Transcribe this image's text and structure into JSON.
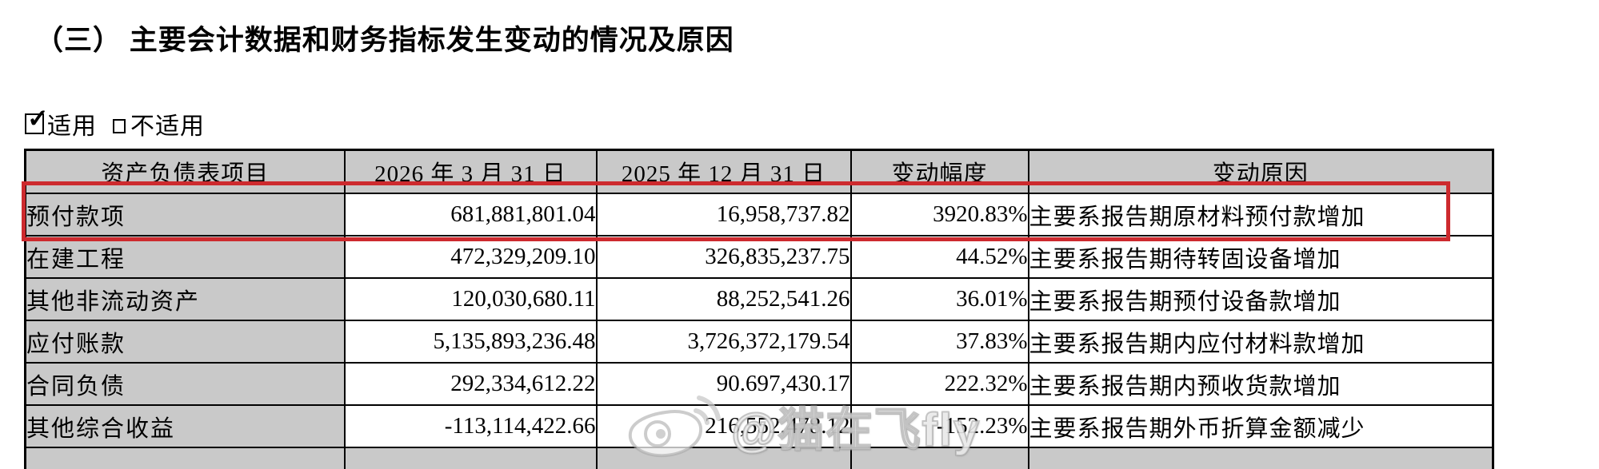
{
  "page": {
    "title": "（三） 主要会计数据和财务指标发生变动的情况及原因",
    "applicability": {
      "applicable_label": "适用",
      "not_applicable_label": "不适用",
      "applicable_checked": true,
      "not_applicable_checked": false,
      "check_glyph": "✓"
    }
  },
  "table": {
    "headers": [
      "资产负债表项目",
      "2026 年 3 月 31 日",
      "2025 年 12 月 31 日",
      "变动幅度",
      "变动原因"
    ],
    "rows": [
      {
        "item": "预付款项",
        "current": "681,881,801.04",
        "previous": "16,958,737.82",
        "change": "3920.83%",
        "reason": "主要系报告期原材料预付款增加",
        "highlighted": true
      },
      {
        "item": "在建工程",
        "current": "472,329,209.10",
        "previous": "326,835,237.75",
        "change": "44.52%",
        "reason": "主要系报告期待转固设备增加",
        "highlighted": false
      },
      {
        "item": "其他非流动资产",
        "current": "120,030,680.11",
        "previous": "88,252,541.26",
        "change": "36.01%",
        "reason": "主要系报告期预付设备款增加",
        "highlighted": false
      },
      {
        "item": "应付账款",
        "current": "5,135,893,236.48",
        "previous": "3,726,372,179.54",
        "change": "37.83%",
        "reason": "主要系报告期内应付材料款增加",
        "highlighted": false
      },
      {
        "item": "合同负债",
        "current": "292,334,612.22",
        "previous": "90.697,430.17",
        "change": "222.32%",
        "reason": "主要系报告期内预收货款增加",
        "highlighted": false
      },
      {
        "item": "其他综合收益",
        "current": "-113,114,422.66",
        "previous": "216,552,478.12",
        "change": "-152.23%",
        "reason": "主要系报告期外币折算金额减少",
        "highlighted": false
      }
    ]
  },
  "annotations": {
    "highlight_color": "#cd2a2e"
  },
  "watermark": {
    "text": "@猫在飞fly",
    "logo": "weibo-eye-icon"
  },
  "colors": {
    "header_bg": "#c9c9c9",
    "item_col_bg": "#c9c9c9",
    "border": "#000000",
    "highlight_red": "#cd2a2e"
  }
}
